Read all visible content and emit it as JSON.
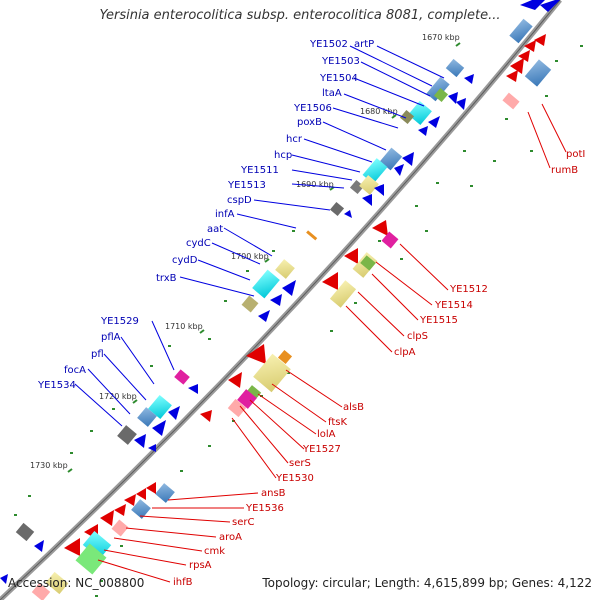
{
  "title": "Yersinia enterocolitica subsp. enterocolitica 8081, complete...",
  "footer": {
    "accession": "Accession: NC_008800",
    "summary": "Topology: circular; Length: 4,615,899 bp; Genes: 4,122"
  },
  "ticks": [
    "1670 kbp",
    "1680 kbp",
    "1690 kbp",
    "1700 kbp",
    "1710 kbp",
    "1720 kbp",
    "1730 kbp"
  ],
  "outer_genes": [
    "YE1502",
    "artP",
    "YE1503",
    "YE1504",
    "ltaA",
    "YE1506",
    "poxB",
    "hcr",
    "hcp",
    "YE1511",
    "YE1513",
    "cspD",
    "infA",
    "aat",
    "cydC",
    "cydD",
    "trxB",
    "YE1529",
    "pflA",
    "pfl",
    "focA",
    "YE1534"
  ],
  "inner_genes": [
    "potI",
    "rumB",
    "YE1512",
    "YE1514",
    "YE1515",
    "clpS",
    "clpA",
    "alsB",
    "ftsK",
    "lolA",
    "YE1527",
    "serS",
    "YE1530",
    "ansB",
    "YE1536",
    "serC",
    "aroA",
    "cmk",
    "rpsA",
    "ihfB"
  ],
  "colors": {
    "backbone": "#9a9a9a",
    "outer_label": "#0000b4",
    "inner_label": "#c80000",
    "tick_dot": "#2e8b2e"
  }
}
